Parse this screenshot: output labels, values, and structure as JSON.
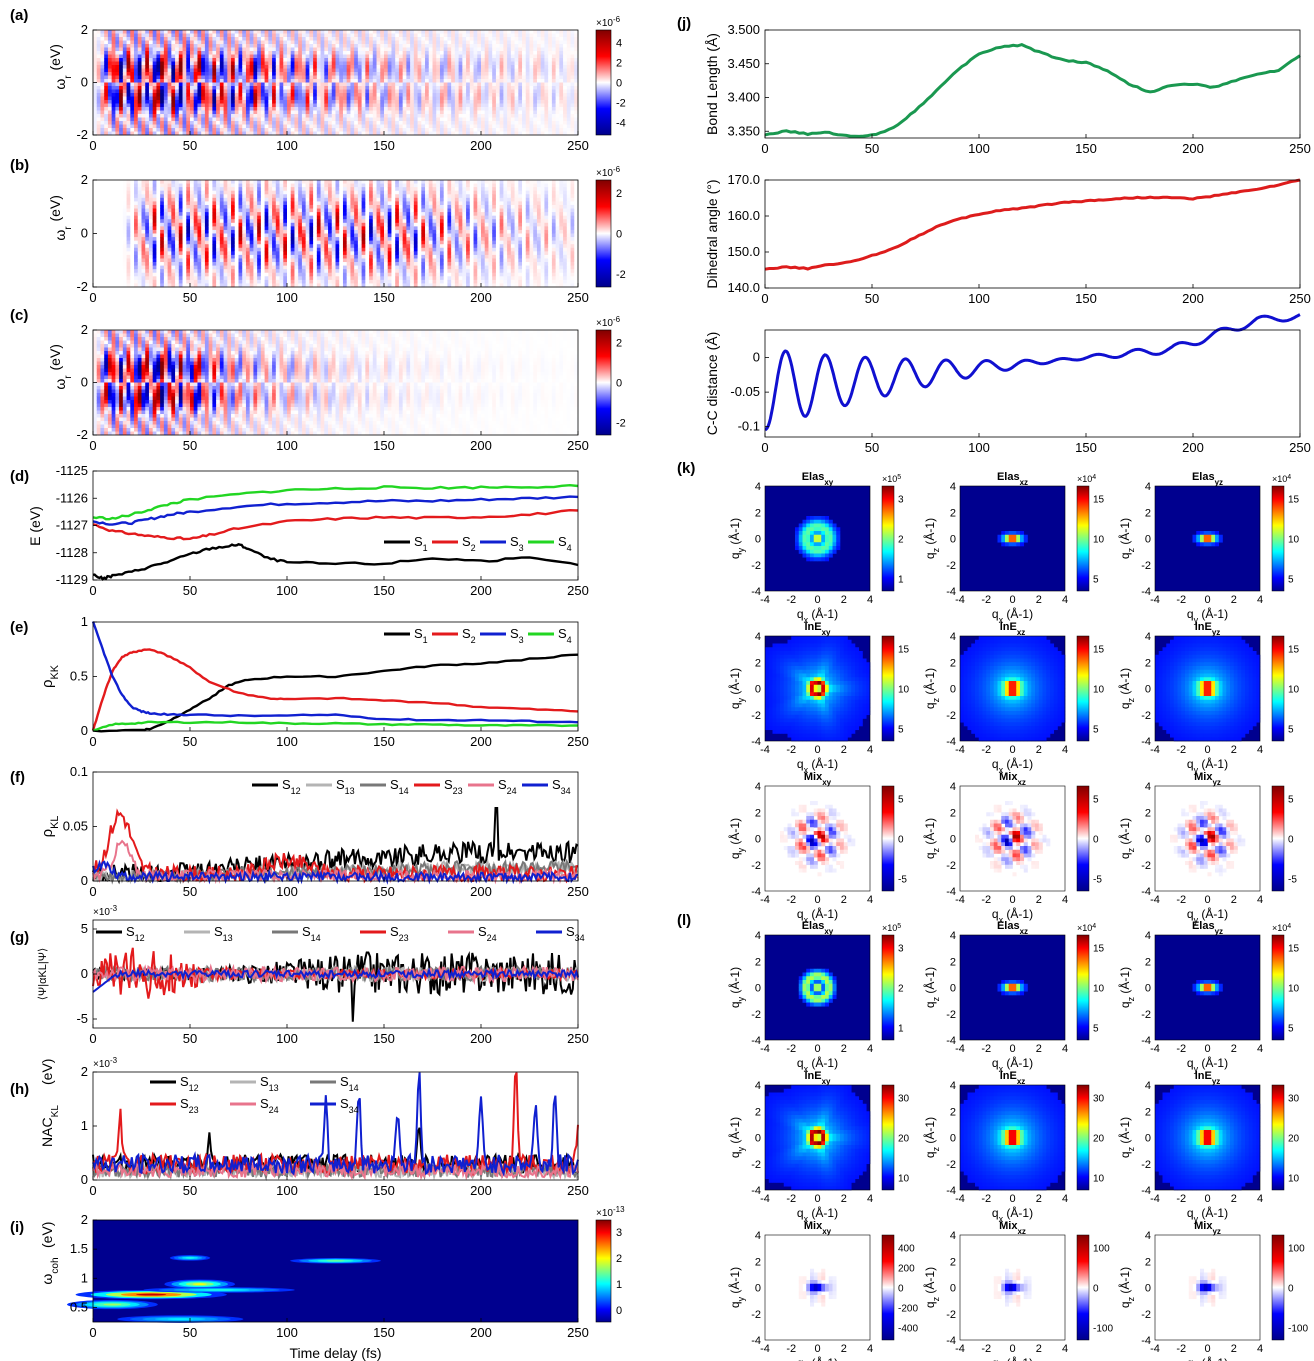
{
  "panel_labels": {
    "a": "(a)",
    "b": "(b)",
    "c": "(c)",
    "d": "(d)",
    "e": "(e)",
    "f": "(f)",
    "g": "(g)",
    "h": "(h)",
    "i": "(i)",
    "j": "(j)",
    "k": "(k)",
    "l": "(l)"
  },
  "x_axis_label": "Time delay (fs)",
  "colors": {
    "black": "#000000",
    "gray_light": "#b4b4b4",
    "gray_dark": "#787878",
    "red": "#e31a1c",
    "pink": "#e8748c",
    "blue": "#1020d0",
    "green": "#22d622",
    "green_j": "#1a9850",
    "red_j": "#dd1c1c",
    "blue_j": "#1010d0"
  },
  "chart_data": [
    {
      "id": "a",
      "type": "heatmap",
      "ylabel": "ωr (eV)",
      "xlim": [
        0,
        250
      ],
      "ylim": [
        -2,
        2
      ],
      "xticks": [
        "0",
        "50",
        "100",
        "150",
        "200",
        "250"
      ],
      "yticks": [
        "-2",
        "0",
        "2"
      ],
      "colorbar": {
        "scale": "×10-6",
        "ticks": [
          "4",
          "2",
          "0",
          "-2",
          "-4"
        ],
        "colormap": "red-white-blue"
      }
    },
    {
      "id": "b",
      "type": "heatmap",
      "ylabel": "ωr (eV)",
      "xlim": [
        0,
        250
      ],
      "ylim": [
        -2,
        2
      ],
      "xticks": [
        "0",
        "50",
        "100",
        "150",
        "200",
        "250"
      ],
      "yticks": [
        "-2",
        "0",
        "2"
      ],
      "colorbar": {
        "scale": "×10-6",
        "ticks": [
          "2",
          "0",
          "-2"
        ],
        "colormap": "red-white-blue"
      }
    },
    {
      "id": "c",
      "type": "heatmap",
      "ylabel": "ωr (eV)",
      "xlim": [
        0,
        250
      ],
      "ylim": [
        -2,
        2
      ],
      "xticks": [
        "0",
        "50",
        "100",
        "150",
        "200",
        "250"
      ],
      "yticks": [
        "-2",
        "0",
        "2"
      ],
      "colorbar": {
        "scale": "×10-6",
        "ticks": [
          "2",
          "0",
          "-2"
        ],
        "colormap": "red-white-blue"
      }
    },
    {
      "id": "d",
      "type": "line",
      "ylabel": "E (eV)",
      "xlim": [
        0,
        250
      ],
      "ylim": [
        -1129,
        -1125
      ],
      "xticks": [
        "0",
        "50",
        "100",
        "150",
        "200",
        "250"
      ],
      "yticks": [
        "-1125",
        "-1126",
        "-1127",
        "-1128",
        "-1129"
      ],
      "legend": "bottom-right",
      "series": [
        {
          "name": "S1",
          "color": "#000000",
          "x": [
            0,
            5,
            10,
            20,
            30,
            40,
            50,
            60,
            70,
            75,
            80,
            90,
            100,
            120,
            150,
            175,
            200,
            225,
            250
          ],
          "y": [
            -1128.8,
            -1128.95,
            -1128.85,
            -1128.7,
            -1128.5,
            -1128.3,
            -1128.05,
            -1127.85,
            -1127.75,
            -1127.7,
            -1127.85,
            -1128.2,
            -1128.35,
            -1128.4,
            -1128.4,
            -1128.2,
            -1128.3,
            -1128.2,
            -1128.45
          ]
        },
        {
          "name": "S2",
          "color": "#e31a1c",
          "x": [
            0,
            10,
            20,
            30,
            40,
            50,
            60,
            75,
            100,
            125,
            150,
            175,
            200,
            225,
            250
          ],
          "y": [
            -1126.95,
            -1127.2,
            -1127.3,
            -1127.4,
            -1127.45,
            -1127.5,
            -1127.35,
            -1127.1,
            -1126.85,
            -1126.75,
            -1126.7,
            -1126.72,
            -1126.68,
            -1126.6,
            -1126.45
          ]
        },
        {
          "name": "S3",
          "color": "#1020d0",
          "x": [
            0,
            10,
            20,
            30,
            40,
            50,
            75,
            100,
            125,
            150,
            175,
            200,
            225,
            250
          ],
          "y": [
            -1126.85,
            -1126.95,
            -1126.9,
            -1126.75,
            -1126.6,
            -1126.5,
            -1126.3,
            -1126.2,
            -1126.15,
            -1126.1,
            -1126.1,
            -1126.05,
            -1126.0,
            -1125.95
          ]
        },
        {
          "name": "S4",
          "color": "#22d622",
          "x": [
            0,
            10,
            20,
            30,
            40,
            50,
            75,
            100,
            125,
            150,
            175,
            200,
            225,
            250
          ],
          "y": [
            -1126.7,
            -1126.75,
            -1126.6,
            -1126.4,
            -1126.2,
            -1126.05,
            -1125.85,
            -1125.7,
            -1125.65,
            -1125.6,
            -1125.62,
            -1125.6,
            -1125.58,
            -1125.55
          ]
        }
      ]
    },
    {
      "id": "e",
      "type": "line",
      "ylabel": "ρKK",
      "xlim": [
        0,
        250
      ],
      "ylim": [
        0,
        1
      ],
      "xticks": [
        "0",
        "50",
        "100",
        "150",
        "200",
        "250"
      ],
      "yticks": [
        "0",
        "0.5",
        "1"
      ],
      "legend": "top-right",
      "series": [
        {
          "name": "S1",
          "color": "#000000",
          "x": [
            0,
            25,
            30,
            40,
            50,
            60,
            70,
            80,
            100,
            125,
            150,
            175,
            200,
            225,
            250
          ],
          "y": [
            0,
            0.01,
            0.02,
            0.1,
            0.2,
            0.3,
            0.42,
            0.47,
            0.5,
            0.5,
            0.55,
            0.6,
            0.62,
            0.66,
            0.7
          ]
        },
        {
          "name": "S2",
          "color": "#e31a1c",
          "x": [
            0,
            5,
            10,
            15,
            20,
            25,
            30,
            40,
            50,
            60,
            75,
            90,
            100,
            125,
            150,
            175,
            200,
            225,
            250
          ],
          "y": [
            0,
            0.3,
            0.55,
            0.68,
            0.72,
            0.74,
            0.75,
            0.68,
            0.58,
            0.45,
            0.35,
            0.3,
            0.29,
            0.3,
            0.28,
            0.26,
            0.22,
            0.2,
            0.18
          ]
        },
        {
          "name": "S3",
          "color": "#1020d0",
          "x": [
            0,
            5,
            10,
            15,
            20,
            25,
            30,
            40,
            50,
            75,
            100,
            125,
            150,
            175,
            200,
            225,
            250
          ],
          "y": [
            1,
            0.75,
            0.5,
            0.33,
            0.22,
            0.18,
            0.16,
            0.15,
            0.15,
            0.14,
            0.14,
            0.15,
            0.11,
            0.1,
            0.1,
            0.09,
            0.08
          ]
        },
        {
          "name": "S4",
          "color": "#22d622",
          "x": [
            0,
            10,
            20,
            30,
            50,
            75,
            100,
            125,
            150,
            175,
            200,
            225,
            250
          ],
          "y": [
            0,
            0.06,
            0.07,
            0.08,
            0.08,
            0.08,
            0.07,
            0.07,
            0.06,
            0.06,
            0.05,
            0.05,
            0.05
          ]
        }
      ]
    },
    {
      "id": "f",
      "type": "line",
      "ylabel": "ρKL",
      "xlim": [
        0,
        250
      ],
      "ylim": [
        0,
        0.1
      ],
      "xticks": [
        "0",
        "50",
        "100",
        "150",
        "200",
        "250"
      ],
      "yticks": [
        "0",
        "0.05",
        "0.1"
      ],
      "legend": "top-right",
      "series": [
        {
          "name": "S12",
          "color": "#000000",
          "amp": 0.02,
          "peak": 0.067
        },
        {
          "name": "S13",
          "color": "#b4b4b4",
          "amp": 0.012
        },
        {
          "name": "S14",
          "color": "#787878",
          "amp": 0.012
        },
        {
          "name": "S23",
          "color": "#e31a1c",
          "amp": 0.015,
          "peak": 0.063
        },
        {
          "name": "S24",
          "color": "#e8748c",
          "amp": 0.01
        },
        {
          "name": "S34",
          "color": "#1020d0",
          "amp": 0.008
        }
      ]
    },
    {
      "id": "g",
      "type": "line",
      "ylabel": "⟨Ψ|αKL|Ψ⟩",
      "scale": "×10-3",
      "xlim": [
        0,
        250
      ],
      "ylim": [
        -6,
        6
      ],
      "xticks": [
        "0",
        "50",
        "100",
        "150",
        "200",
        "250"
      ],
      "yticks": [
        "5",
        "0",
        "-5"
      ],
      "legend": "top",
      "series": [
        {
          "name": "S12",
          "color": "#000000"
        },
        {
          "name": "S13",
          "color": "#b4b4b4"
        },
        {
          "name": "S14",
          "color": "#787878"
        },
        {
          "name": "S23",
          "color": "#e31a1c"
        },
        {
          "name": "S24",
          "color": "#e8748c"
        },
        {
          "name": "S34",
          "color": "#1020d0"
        }
      ]
    },
    {
      "id": "h",
      "type": "line",
      "ylabel": "NACKL (eV)",
      "scale": "×10-3",
      "xlim": [
        0,
        250
      ],
      "ylim": [
        0,
        2
      ],
      "xticks": [
        "0",
        "50",
        "100",
        "150",
        "200",
        "250"
      ],
      "yticks": [
        "0",
        "1",
        "2"
      ],
      "legend": "top-left",
      "series": [
        {
          "name": "S12",
          "color": "#000000"
        },
        {
          "name": "S13",
          "color": "#b4b4b4"
        },
        {
          "name": "S14",
          "color": "#787878"
        },
        {
          "name": "S23",
          "color": "#e31a1c"
        },
        {
          "name": "S24",
          "color": "#e8748c"
        },
        {
          "name": "S34",
          "color": "#1020d0"
        }
      ]
    },
    {
      "id": "i",
      "type": "heatmap",
      "ylabel": "ωcoh (eV)",
      "xlabel": "Time delay (fs)",
      "xlim": [
        0,
        250
      ],
      "ylim": [
        0.25,
        2
      ],
      "xticks": [
        "0",
        "50",
        "100",
        "150",
        "200",
        "250"
      ],
      "yticks": [
        "2",
        "1.5",
        "1",
        "0.5"
      ],
      "colorbar": {
        "scale": "×10-13",
        "ticks": [
          "3",
          "2",
          "1",
          "0"
        ],
        "colormap": "jet"
      }
    },
    {
      "id": "j1",
      "type": "line",
      "ylabel": "Bond Length (Å)",
      "xlim": [
        0,
        250
      ],
      "ylim": [
        3.34,
        3.5
      ],
      "xticks": [
        "0",
        "50",
        "100",
        "150",
        "200",
        "250"
      ],
      "yticks": [
        "3.500",
        "3.450",
        "3.400",
        "3.350"
      ],
      "series": [
        {
          "name": "",
          "color": "#1a9850",
          "x": [
            0,
            10,
            20,
            30,
            40,
            50,
            60,
            70,
            80,
            90,
            100,
            110,
            120,
            130,
            140,
            150,
            160,
            170,
            180,
            190,
            200,
            210,
            220,
            230,
            240,
            250
          ],
          "y": [
            3.345,
            3.35,
            3.346,
            3.348,
            3.342,
            3.344,
            3.355,
            3.38,
            3.41,
            3.44,
            3.465,
            3.475,
            3.478,
            3.465,
            3.455,
            3.452,
            3.44,
            3.42,
            3.408,
            3.418,
            3.42,
            3.415,
            3.425,
            3.435,
            3.44,
            3.462
          ]
        }
      ]
    },
    {
      "id": "j2",
      "type": "line",
      "ylabel": "Dihedral angle (°)",
      "xlim": [
        0,
        250
      ],
      "ylim": [
        140,
        170
      ],
      "xticks": [
        "0",
        "50",
        "100",
        "150",
        "200",
        "250"
      ],
      "yticks": [
        "170.0",
        "160.0",
        "150.0",
        "140.0"
      ],
      "series": [
        {
          "name": "",
          "color": "#dd1c1c",
          "x": [
            0,
            10,
            20,
            30,
            40,
            50,
            60,
            70,
            80,
            90,
            100,
            110,
            120,
            130,
            140,
            150,
            160,
            170,
            180,
            190,
            200,
            210,
            220,
            230,
            240,
            250
          ],
          "y": [
            145.3,
            145.8,
            145.4,
            146.5,
            147.2,
            149,
            151,
            154,
            157,
            159,
            160.5,
            161.6,
            162.2,
            163,
            163.8,
            164.2,
            164.6,
            165,
            165.2,
            165.1,
            164.8,
            165.6,
            166.5,
            167.5,
            168.6,
            170
          ]
        }
      ]
    },
    {
      "id": "j3",
      "type": "line",
      "ylabel": "C-C distance (Å)",
      "xlim": [
        0,
        250
      ],
      "ylim": [
        -0.115,
        0.04
      ],
      "xticks": [
        "0",
        "50",
        "100",
        "150",
        "200",
        "250"
      ],
      "yticks": [
        "0",
        "-0.05",
        "-0.1"
      ],
      "series": [
        {
          "name": "",
          "color": "#1010d0"
        }
      ]
    }
  ],
  "panel_k": {
    "rows": [
      {
        "titles": [
          [
            "Elas",
            "xy"
          ],
          [
            "Elas",
            "xz"
          ],
          [
            "Elas",
            "yz"
          ]
        ],
        "scales": [
          "×10^5",
          "×10^4",
          "×10^4"
        ],
        "ticks": [
          [
            "3",
            "2",
            "1"
          ],
          [
            "15",
            "10",
            "5"
          ],
          [
            "15",
            "10",
            "5"
          ]
        ],
        "cmap": "jet"
      },
      {
        "titles": [
          [
            "lnE",
            "xy"
          ],
          [
            "lnE",
            "xz"
          ],
          [
            "lnE",
            "yz"
          ]
        ],
        "scales": [
          "",
          "",
          ""
        ],
        "ticks": [
          [
            "15",
            "10",
            "5"
          ],
          [
            "15",
            "10",
            "5"
          ],
          [
            "15",
            "10",
            "5"
          ]
        ],
        "cmap": "jet"
      },
      {
        "titles": [
          [
            "Mix",
            "xy"
          ],
          [
            "Mix",
            "xz"
          ],
          [
            "Mix",
            "yz"
          ]
        ],
        "scales": [
          "",
          "",
          ""
        ],
        "ticks": [
          [
            "5",
            "0",
            "-5"
          ],
          [
            "5",
            "0",
            "-5"
          ],
          [
            "5",
            "0",
            "-5"
          ]
        ],
        "cmap": "rwb"
      }
    ]
  },
  "panel_l": {
    "rows": [
      {
        "titles": [
          [
            "Elas",
            "xy"
          ],
          [
            "Elas",
            "xz"
          ],
          [
            "Elas",
            "yz"
          ]
        ],
        "scales": [
          "×10^5",
          "×10^4",
          "×10^4"
        ],
        "ticks": [
          [
            "3",
            "2",
            "1"
          ],
          [
            "15",
            "10",
            "5"
          ],
          [
            "15",
            "10",
            "5"
          ]
        ],
        "cmap": "jet"
      },
      {
        "titles": [
          [
            "lnE",
            "xy"
          ],
          [
            "lnE",
            "xz"
          ],
          [
            "lnE",
            "yz"
          ]
        ],
        "scales": [
          "",
          "",
          ""
        ],
        "ticks": [
          [
            "30",
            "20",
            "10"
          ],
          [
            "30",
            "20",
            "10"
          ],
          [
            "30",
            "20",
            "10"
          ]
        ],
        "cmap": "jet"
      },
      {
        "titles": [
          [
            "Mix",
            "xy"
          ],
          [
            "Mix",
            "xz"
          ],
          [
            "Mix",
            "yz"
          ]
        ],
        "scales": [
          "",
          "",
          ""
        ],
        "ticks": [
          [
            "400",
            "200",
            "0",
            "-200",
            "-400"
          ],
          [
            "100",
            "0",
            "-100"
          ],
          [
            "100",
            "0",
            "-100"
          ]
        ],
        "cmap": "rwb"
      }
    ]
  },
  "small_axes": {
    "ticks": [
      "-4",
      "-2",
      "0",
      "2",
      "4"
    ],
    "xlabels": [
      [
        "q",
        "x"
      ],
      [
        "q",
        "x"
      ],
      [
        "q",
        "y"
      ]
    ],
    "ylabels": [
      [
        "q",
        "y"
      ],
      [
        "q",
        "z"
      ],
      [
        "q",
        "z"
      ]
    ],
    "unit": "(Å-1)"
  }
}
